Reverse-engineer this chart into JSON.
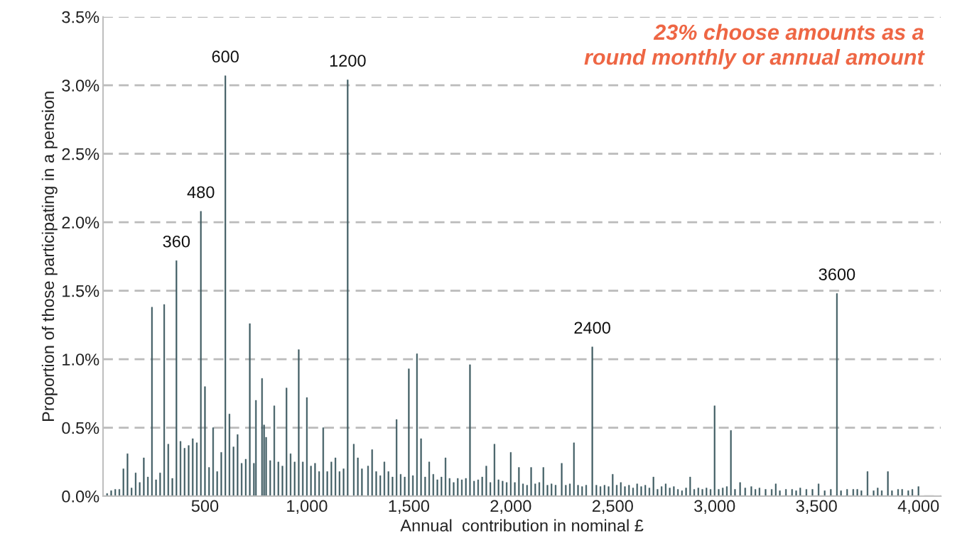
{
  "chart_data": {
    "type": "bar",
    "xlabel": "Annual  contribution in nominal £",
    "ylabel": "Proportion of those participating in a pension",
    "color": "#3d5a60",
    "grid": "y",
    "legend": false,
    "xlim": [
      0,
      4110
    ],
    "xticks": [
      500,
      {
        "value": 1000,
        "label": "1,000"
      },
      {
        "value": 1500,
        "label": "1,500"
      },
      {
        "value": 2000,
        "label": "2,000"
      },
      {
        "value": 2500,
        "label": "2,500"
      },
      {
        "value": 3000,
        "label": "3,000"
      },
      {
        "value": 3500,
        "label": "3,500"
      },
      {
        "value": 4000,
        "label": "4,000"
      }
    ],
    "ylim": [
      0,
      3.5
    ],
    "yticks": [
      {
        "value": 0,
        "label": "0.0%"
      },
      {
        "value": 0.5,
        "label": "0.5%"
      },
      {
        "value": 1,
        "label": "1.0%"
      },
      {
        "value": 1.5,
        "label": "1.5%"
      },
      {
        "value": 2,
        "label": "2.0%"
      },
      {
        "value": 2.5,
        "label": "2.5%"
      },
      {
        "value": 3,
        "label": "3.0%"
      },
      {
        "value": 3.5,
        "label": "3.5%"
      }
    ],
    "x": [
      20,
      40,
      60,
      80,
      100,
      120,
      140,
      160,
      180,
      200,
      220,
      240,
      260,
      280,
      300,
      320,
      340,
      360,
      380,
      400,
      420,
      440,
      460,
      480,
      500,
      520,
      540,
      560,
      580,
      600,
      620,
      640,
      660,
      680,
      700,
      720,
      740,
      750,
      780,
      790,
      800,
      820,
      840,
      860,
      880,
      900,
      920,
      940,
      960,
      980,
      1000,
      1020,
      1040,
      1060,
      1080,
      1100,
      1120,
      1140,
      1160,
      1180,
      1200,
      1230,
      1250,
      1270,
      1300,
      1320,
      1340,
      1360,
      1380,
      1400,
      1420,
      1440,
      1460,
      1480,
      1500,
      1520,
      1540,
      1560,
      1580,
      1600,
      1620,
      1640,
      1660,
      1680,
      1700,
      1720,
      1740,
      1760,
      1780,
      1800,
      1820,
      1840,
      1860,
      1880,
      1900,
      1920,
      1940,
      1960,
      1980,
      2000,
      2020,
      2040,
      2060,
      2080,
      2100,
      2120,
      2140,
      2160,
      2180,
      2200,
      2220,
      2250,
      2270,
      2290,
      2310,
      2330,
      2350,
      2370,
      2400,
      2420,
      2440,
      2460,
      2480,
      2500,
      2520,
      2540,
      2560,
      2580,
      2600,
      2620,
      2640,
      2660,
      2680,
      2700,
      2720,
      2740,
      2760,
      2780,
      2800,
      2820,
      2840,
      2860,
      2880,
      2900,
      2920,
      2940,
      2960,
      2980,
      3000,
      3020,
      3040,
      3060,
      3080,
      3100,
      3125,
      3150,
      3180,
      3200,
      3220,
      3250,
      3280,
      3300,
      3320,
      3350,
      3380,
      3400,
      3420,
      3450,
      3480,
      3510,
      3540,
      3570,
      3600,
      3620,
      3650,
      3680,
      3700,
      3720,
      3750,
      3780,
      3800,
      3820,
      3850,
      3870,
      3900,
      3920,
      3950,
      3970,
      4000
    ],
    "values": [
      0.02,
      0.04,
      0.05,
      0.05,
      0.2,
      0.31,
      0.06,
      0.17,
      0.1,
      0.28,
      0.14,
      1.38,
      0.12,
      0.17,
      1.4,
      0.38,
      0.13,
      1.72,
      0.4,
      0.35,
      0.37,
      0.42,
      0.39,
      2.08,
      0.8,
      0.21,
      0.5,
      0.18,
      0.32,
      3.07,
      0.6,
      0.36,
      0.45,
      0.24,
      0.27,
      1.26,
      0.24,
      0.7,
      0.86,
      0.52,
      0.43,
      0.26,
      0.66,
      0.25,
      0.22,
      0.79,
      0.31,
      0.25,
      1.07,
      0.25,
      0.72,
      0.22,
      0.24,
      0.18,
      0.5,
      0.18,
      0.25,
      0.28,
      0.18,
      0.2,
      3.04,
      0.38,
      0.28,
      0.2,
      0.22,
      0.34,
      0.18,
      0.15,
      0.25,
      0.18,
      0.14,
      0.56,
      0.16,
      0.14,
      0.93,
      0.15,
      1.04,
      0.42,
      0.14,
      0.25,
      0.16,
      0.12,
      0.14,
      0.28,
      0.13,
      0.1,
      0.13,
      0.12,
      0.13,
      0.96,
      0.11,
      0.12,
      0.14,
      0.22,
      0.1,
      0.38,
      0.12,
      0.11,
      0.1,
      0.32,
      0.1,
      0.21,
      0.09,
      0.08,
      0.21,
      0.09,
      0.1,
      0.21,
      0.08,
      0.09,
      0.08,
      0.24,
      0.08,
      0.09,
      0.39,
      0.08,
      0.07,
      0.08,
      1.09,
      0.08,
      0.07,
      0.08,
      0.07,
      0.16,
      0.08,
      0.1,
      0.07,
      0.08,
      0.06,
      0.09,
      0.07,
      0.08,
      0.06,
      0.14,
      0.05,
      0.07,
      0.09,
      0.06,
      0.07,
      0.05,
      0.04,
      0.06,
      0.14,
      0.05,
      0.06,
      0.05,
      0.06,
      0.05,
      0.66,
      0.05,
      0.06,
      0.07,
      0.48,
      0.05,
      0.1,
      0.06,
      0.07,
      0.05,
      0.06,
      0.05,
      0.05,
      0.09,
      0.04,
      0.05,
      0.05,
      0.04,
      0.06,
      0.05,
      0.05,
      0.09,
      0.04,
      0.05,
      1.48,
      0.04,
      0.05,
      0.05,
      0.05,
      0.04,
      0.18,
      0.04,
      0.06,
      0.04,
      0.18,
      0.04,
      0.05,
      0.05,
      0.04,
      0.05,
      0.07
    ],
    "annotations": [
      {
        "text": "360",
        "x": 360,
        "y": 1.72
      },
      {
        "text": "480",
        "x": 480,
        "y": 2.08
      },
      {
        "text": "600",
        "x": 600,
        "y": 3.07
      },
      {
        "text": "1200",
        "x": 1200,
        "y": 3.04
      },
      {
        "text": "2400",
        "x": 2400,
        "y": 1.09
      },
      {
        "text": "3600",
        "x": 3600,
        "y": 1.48
      },
      "23% choose amounts as a\nround monthly or annual amount"
    ]
  }
}
